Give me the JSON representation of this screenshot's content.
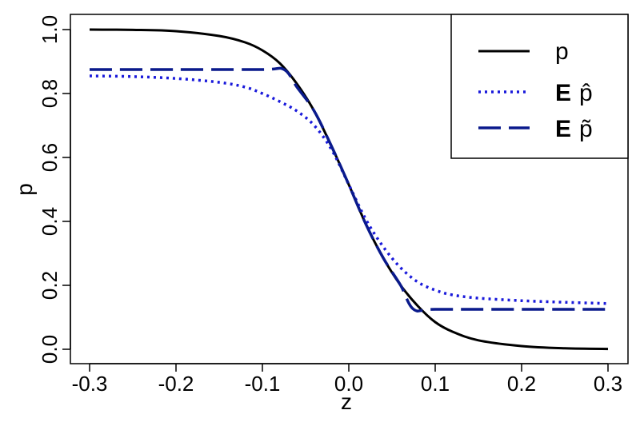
{
  "chart_data": {
    "type": "line",
    "title": "",
    "xlabel": "z",
    "ylabel": "p",
    "xlim": [
      -0.3,
      0.3
    ],
    "ylim": [
      0.0,
      1.0
    ],
    "x_ticks": [
      -0.3,
      -0.2,
      -0.1,
      0.0,
      0.1,
      0.2,
      0.3
    ],
    "x_tick_labels": [
      "-0.3",
      "-0.2",
      "-0.1",
      "0.0",
      "0.1",
      "0.2",
      "0.3"
    ],
    "y_ticks": [
      0.0,
      0.2,
      0.4,
      0.6,
      0.8,
      1.0
    ],
    "y_tick_labels": [
      "0.0",
      "0.2",
      "0.4",
      "0.6",
      "0.8",
      "1.0"
    ],
    "grid": false,
    "legend_position": "top-right",
    "series": [
      {
        "name": "p",
        "style": "solid",
        "color": "#000000",
        "x": [
          -0.3,
          -0.25,
          -0.2,
          -0.15,
          -0.12,
          -0.1,
          -0.08,
          -0.06,
          -0.04,
          -0.02,
          0.0,
          0.02,
          0.04,
          0.06,
          0.08,
          0.1,
          0.12,
          0.15,
          0.2,
          0.25,
          0.3
        ],
        "y": [
          1.0,
          0.999,
          0.995,
          0.98,
          0.96,
          0.935,
          0.895,
          0.83,
          0.745,
          0.635,
          0.515,
          0.39,
          0.285,
          0.2,
          0.135,
          0.085,
          0.055,
          0.028,
          0.01,
          0.003,
          0.001
        ]
      },
      {
        "name": "E p̂",
        "legend_bold": "E",
        "legend_symbol": "p̂",
        "style": "dotted",
        "color": "#1a1adb",
        "x": [
          -0.3,
          -0.25,
          -0.2,
          -0.15,
          -0.12,
          -0.1,
          -0.08,
          -0.06,
          -0.04,
          -0.02,
          0.0,
          0.02,
          0.04,
          0.06,
          0.08,
          0.1,
          0.12,
          0.15,
          0.2,
          0.25,
          0.3
        ],
        "y": [
          0.855,
          0.853,
          0.847,
          0.835,
          0.82,
          0.8,
          0.775,
          0.745,
          0.7,
          0.625,
          0.515,
          0.405,
          0.32,
          0.255,
          0.21,
          0.185,
          0.17,
          0.16,
          0.152,
          0.147,
          0.143
        ]
      },
      {
        "name": "E p̃",
        "legend_bold": "E",
        "legend_symbol": "p̃",
        "style": "dashed",
        "color": "#0a1a8c",
        "x": [
          -0.3,
          -0.2,
          -0.1,
          -0.075,
          -0.06,
          -0.04,
          -0.02,
          0.0,
          0.02,
          0.04,
          0.06,
          0.075,
          0.1,
          0.2,
          0.3
        ],
        "y": [
          0.875,
          0.875,
          0.875,
          0.875,
          0.82,
          0.745,
          0.635,
          0.515,
          0.39,
          0.285,
          0.2,
          0.125,
          0.125,
          0.125,
          0.125
        ]
      }
    ]
  }
}
